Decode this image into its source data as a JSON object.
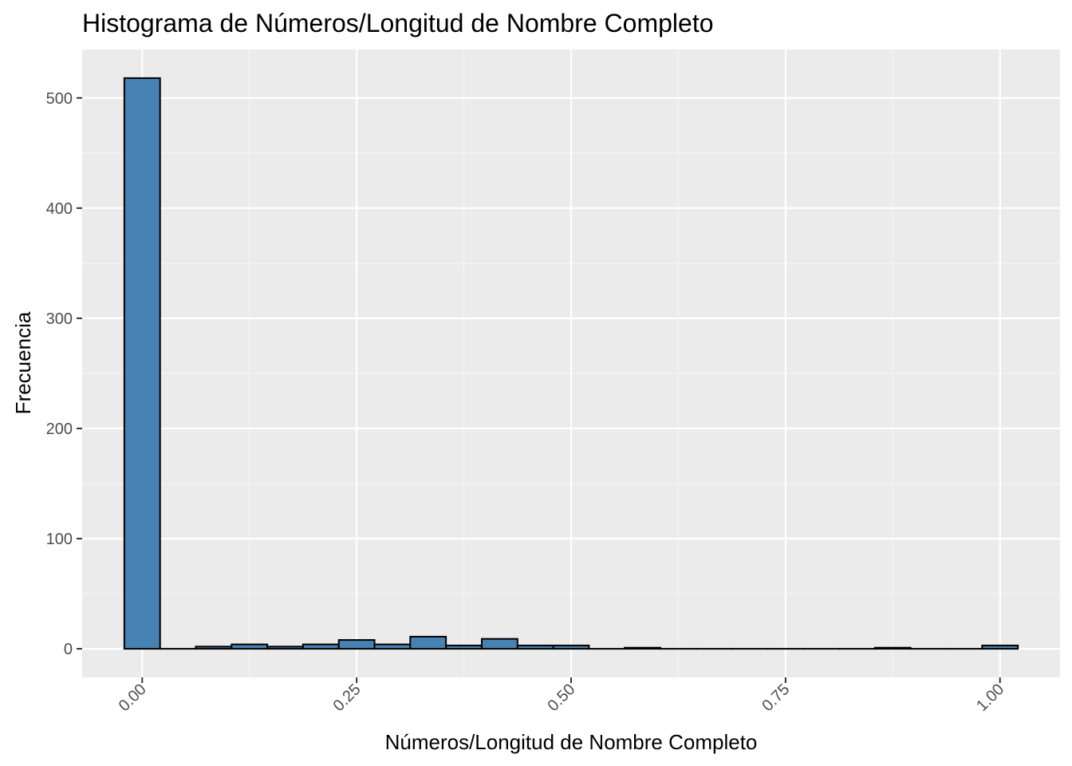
{
  "chart_data": {
    "type": "bar",
    "title": "Histograma de Números/Longitud de Nombre Completo",
    "xlabel": "Números/Longitud de Nombre Completo",
    "ylabel": "Frecuencia",
    "bin_width": 0.04166667,
    "bins_x": [
      0.0,
      0.0417,
      0.0833,
      0.125,
      0.1667,
      0.2083,
      0.25,
      0.2917,
      0.3333,
      0.375,
      0.4167,
      0.4583,
      0.5,
      0.5417,
      0.5833,
      0.625,
      0.6667,
      0.7083,
      0.75,
      0.7917,
      0.8333,
      0.875,
      0.9167,
      0.9583,
      1.0
    ],
    "values": [
      518,
      0,
      2,
      4,
      2,
      4,
      8,
      4,
      11,
      3,
      9,
      3,
      3,
      0,
      1,
      0,
      0,
      0,
      0,
      0,
      0,
      1,
      0,
      0,
      3
    ],
    "xlim": [
      -0.07,
      1.07
    ],
    "ylim": [
      -26,
      544
    ],
    "x_ticks": [
      "0.00",
      "0.25",
      "0.50",
      "0.75",
      "1.00"
    ],
    "x_tick_values": [
      0.0,
      0.25,
      0.5,
      0.75,
      1.0
    ],
    "y_ticks": [
      "0",
      "100",
      "200",
      "300",
      "400",
      "500"
    ],
    "y_tick_values": [
      0,
      100,
      200,
      300,
      400,
      500
    ],
    "grid": true,
    "legend": "none",
    "colors": {
      "bar_fill": "#4682b4",
      "bar_stroke": "#000000",
      "panel_bg": "#ebebeb",
      "grid_major": "#ffffff",
      "grid_minor": "#f5f5f5"
    }
  }
}
